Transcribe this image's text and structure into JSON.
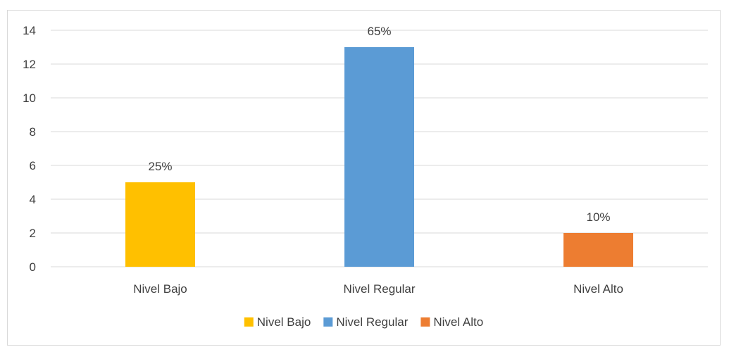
{
  "chart_data": {
    "type": "bar",
    "categories": [
      "Nivel Bajo",
      "Nivel Regular",
      "Nivel Alto"
    ],
    "values": [
      5,
      13,
      2
    ],
    "data_labels": [
      "25%",
      "65%",
      "10%"
    ],
    "colors": [
      "#FFC000",
      "#5B9BD5",
      "#ED7D31"
    ],
    "ylim": [
      0,
      14
    ],
    "yticks": [
      0,
      2,
      4,
      6,
      8,
      10,
      12,
      14
    ],
    "grid": true,
    "legend": {
      "position": "bottom",
      "entries": [
        "Nivel Bajo",
        "Nivel Regular",
        "Nivel Alto"
      ]
    }
  }
}
